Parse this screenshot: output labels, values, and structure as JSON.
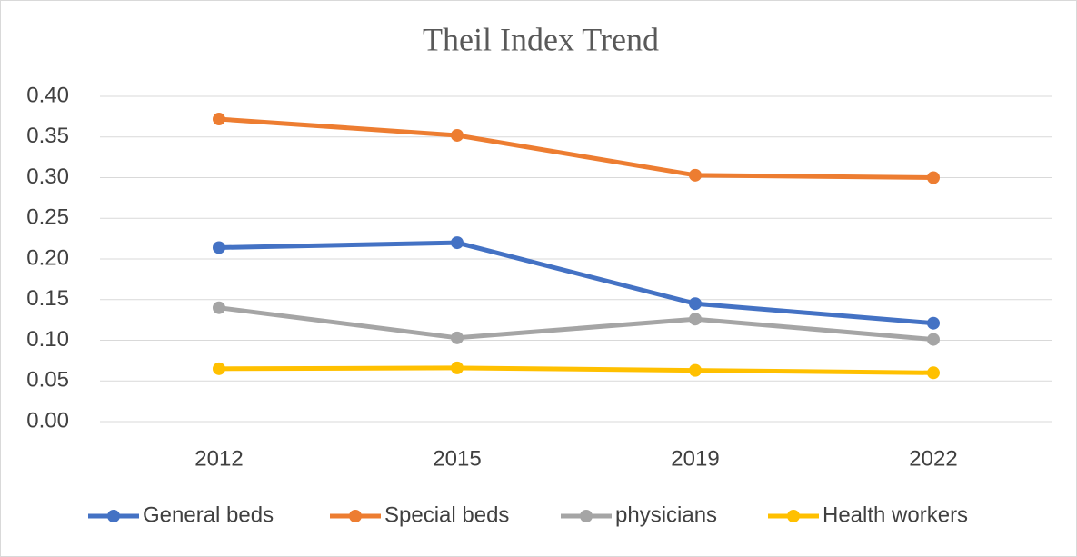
{
  "chart_data": {
    "type": "line",
    "title": "Theil Index Trend",
    "categories": [
      "2012",
      "2015",
      "2019",
      "2022"
    ],
    "series": [
      {
        "name": "General beds",
        "color": "#4472c4",
        "values": [
          0.214,
          0.22,
          0.145,
          0.121
        ]
      },
      {
        "name": "Special beds",
        "color": "#ed7d31",
        "values": [
          0.372,
          0.352,
          0.303,
          0.3
        ]
      },
      {
        "name": "physicians",
        "color": "#a5a5a5",
        "values": [
          0.14,
          0.103,
          0.126,
          0.101
        ]
      },
      {
        "name": "Health workers",
        "color": "#ffc000",
        "values": [
          0.065,
          0.066,
          0.063,
          0.06
        ]
      }
    ],
    "ylim": [
      0,
      0.4
    ],
    "yticks": [
      {
        "value": 0,
        "label": "0.00"
      },
      {
        "value": 0.05,
        "label": "0.05"
      },
      {
        "value": 0.1,
        "label": "0.10"
      },
      {
        "value": 0.15,
        "label": "0.15"
      },
      {
        "value": 0.2,
        "label": "0.20"
      },
      {
        "value": 0.25,
        "label": "0.25"
      },
      {
        "value": 0.3,
        "label": "0.30"
      },
      {
        "value": 0.35,
        "label": "0.35"
      },
      {
        "value": 0.4,
        "label": "0.40"
      }
    ],
    "grid": true,
    "legend": "bottom"
  }
}
